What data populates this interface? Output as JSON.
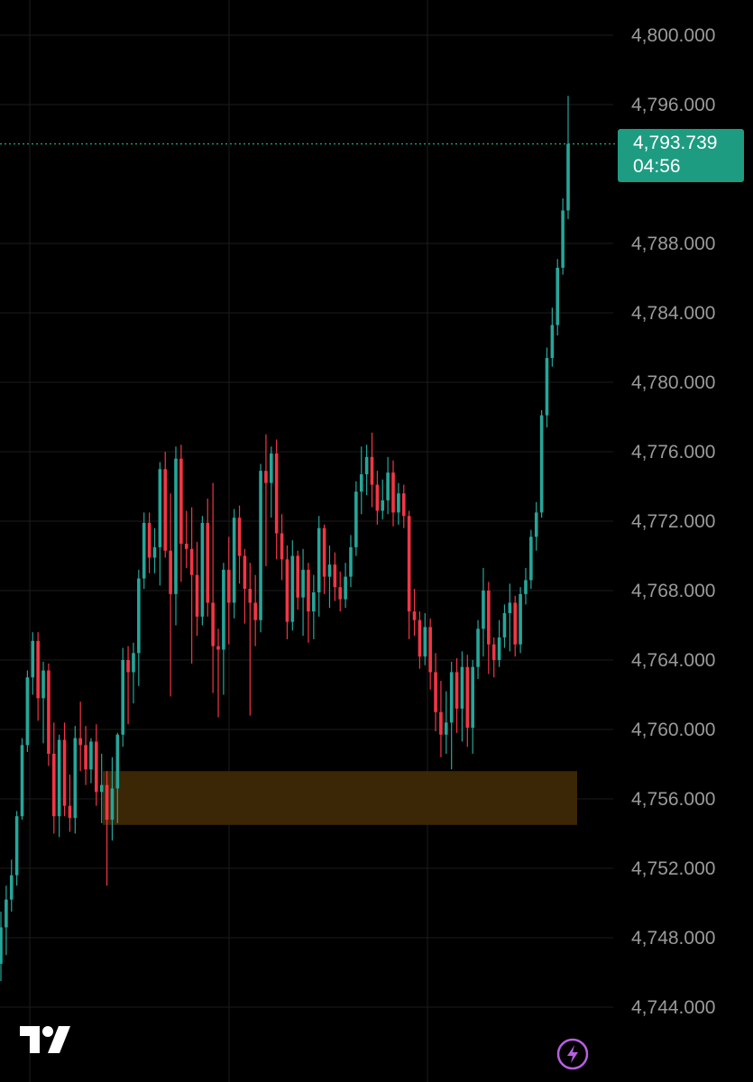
{
  "chart_data": {
    "type": "candlestick",
    "ylim": [
      4742,
      4801
    ],
    "y_ticks": [
      "4,800.000",
      "4,796.000",
      "4,788.000",
      "4,784.000",
      "4,780.000",
      "4,776.000",
      "4,772.000",
      "4,768.000",
      "4,764.000",
      "4,760.000",
      "4,756.000",
      "4,752.000",
      "4,748.000",
      "4,744.000"
    ],
    "y_tick_values": [
      4800,
      4796,
      4788,
      4784,
      4780,
      4776,
      4772,
      4768,
      4764,
      4760,
      4756,
      4752,
      4748,
      4744
    ],
    "grid": true,
    "colors": {
      "up": "#26a69a",
      "down": "#f23645",
      "zone": "#3b2605",
      "current_price_line": "#1d9c81"
    },
    "current_price": {
      "value": 4793.739,
      "label": "4,793.739",
      "countdown": "04:56"
    },
    "zone": {
      "low": 4754.5,
      "high": 4757.6
    },
    "candles": [
      [
        4746.5,
        4749.5,
        4745.5,
        4748.6
      ],
      [
        4748.6,
        4751.0,
        4747.0,
        4750.2
      ],
      [
        4750.2,
        4752.5,
        4749.5,
        4751.6
      ],
      [
        4751.6,
        4755.3,
        4751.0,
        4755.0
      ],
      [
        4755.0,
        4759.5,
        4754.8,
        4759.1
      ],
      [
        4759.1,
        4763.4,
        4758.7,
        4763.0
      ],
      [
        4763.0,
        4765.6,
        4762.0,
        4765.1
      ],
      [
        4765.1,
        4765.6,
        4760.5,
        4761.8
      ],
      [
        4761.8,
        4763.9,
        4759.2,
        4763.4
      ],
      [
        4763.4,
        4763.8,
        4757.9,
        4758.6
      ],
      [
        4758.6,
        4760.4,
        4754.0,
        4755.0
      ],
      [
        4755.0,
        4759.7,
        4753.8,
        4759.4
      ],
      [
        4759.4,
        4760.4,
        4755.0,
        4755.6
      ],
      [
        4755.6,
        4757.4,
        4754.1,
        4754.9
      ],
      [
        4754.9,
        4760.2,
        4754.0,
        4759.5
      ],
      [
        4759.5,
        4761.6,
        4757.6,
        4759.1
      ],
      [
        4759.1,
        4760.2,
        4756.8,
        4757.7
      ],
      [
        4757.7,
        4759.5,
        4756.9,
        4759.3
      ],
      [
        4759.3,
        4760.3,
        4755.6,
        4756.4
      ],
      [
        4756.4,
        4758.6,
        4754.6,
        4756.8
      ],
      [
        4756.8,
        4757.6,
        4751.0,
        4754.8
      ],
      [
        4754.8,
        4758.4,
        4753.6,
        4756.6
      ],
      [
        4756.6,
        4759.8,
        4754.6,
        4759.7
      ],
      [
        4759.7,
        4764.7,
        4759.0,
        4764.0
      ],
      [
        4764.0,
        4764.8,
        4760.3,
        4763.3
      ],
      [
        4763.3,
        4765.0,
        4761.5,
        4764.4
      ],
      [
        4764.4,
        4769.2,
        4762.5,
        4768.7
      ],
      [
        4768.7,
        4772.5,
        4768.1,
        4771.9
      ],
      [
        4771.9,
        4772.5,
        4769.0,
        4769.9
      ],
      [
        4769.9,
        4771.6,
        4769.0,
        4770.5
      ],
      [
        4770.5,
        4775.4,
        4768.3,
        4775.0
      ],
      [
        4775.0,
        4776.0,
        4769.9,
        4770.3
      ],
      [
        4770.3,
        4773.6,
        4761.9,
        4767.8
      ],
      [
        4767.8,
        4776.3,
        4766.0,
        4775.6
      ],
      [
        4775.6,
        4776.4,
        4768.5,
        4770.7
      ],
      [
        4770.7,
        4772.6,
        4769.3,
        4770.4
      ],
      [
        4770.4,
        4772.8,
        4763.8,
        4768.9
      ],
      [
        4768.9,
        4770.8,
        4765.4,
        4766.5
      ],
      [
        4766.5,
        4772.3,
        4766.0,
        4771.9
      ],
      [
        4771.9,
        4773.3,
        4766.5,
        4767.3
      ],
      [
        4767.3,
        4774.2,
        4762.1,
        4764.8
      ],
      [
        4764.8,
        4765.8,
        4760.7,
        4764.6
      ],
      [
        4764.6,
        4769.6,
        4762.0,
        4769.2
      ],
      [
        4769.2,
        4771.1,
        4764.9,
        4767.3
      ],
      [
        4767.3,
        4772.7,
        4766.4,
        4772.2
      ],
      [
        4772.2,
        4772.9,
        4768.4,
        4770.0
      ],
      [
        4770.0,
        4770.4,
        4766.1,
        4768.1
      ],
      [
        4768.1,
        4769.6,
        4760.8,
        4767.3
      ],
      [
        4767.3,
        4768.9,
        4764.8,
        4766.3
      ],
      [
        4766.3,
        4775.3,
        4765.6,
        4774.9
      ],
      [
        4774.9,
        4777.0,
        4769.4,
        4774.2
      ],
      [
        4774.2,
        4776.3,
        4772.2,
        4775.9
      ],
      [
        4775.9,
        4776.7,
        4769.8,
        4771.3
      ],
      [
        4771.3,
        4772.4,
        4768.6,
        4769.8
      ],
      [
        4769.8,
        4770.6,
        4765.2,
        4766.2
      ],
      [
        4766.2,
        4770.9,
        4765.7,
        4770.0
      ],
      [
        4770.0,
        4770.3,
        4766.9,
        4767.6
      ],
      [
        4767.6,
        4770.4,
        4765.4,
        4769.2
      ],
      [
        4769.2,
        4769.6,
        4765.0,
        4766.8
      ],
      [
        4766.8,
        4768.9,
        4765.2,
        4767.9
      ],
      [
        4767.9,
        4772.3,
        4766.5,
        4771.6
      ],
      [
        4771.6,
        4771.8,
        4767.8,
        4768.8
      ],
      [
        4768.8,
        4770.6,
        4767.0,
        4769.5
      ],
      [
        4769.5,
        4770.2,
        4767.4,
        4768.2
      ],
      [
        4768.2,
        4769.1,
        4766.8,
        4767.5
      ],
      [
        4767.5,
        4769.6,
        4767.0,
        4768.8
      ],
      [
        4768.8,
        4771.2,
        4768.2,
        4770.5
      ],
      [
        4770.5,
        4774.3,
        4770.0,
        4773.7
      ],
      [
        4773.7,
        4776.3,
        4772.4,
        4774.7
      ],
      [
        4774.7,
        4776.4,
        4773.5,
        4775.7
      ],
      [
        4775.7,
        4777.1,
        4772.8,
        4774.1
      ],
      [
        4774.1,
        4774.9,
        4771.8,
        4772.6
      ],
      [
        4772.6,
        4774.4,
        4772.1,
        4773.2
      ],
      [
        4773.2,
        4775.7,
        4772.4,
        4774.8
      ],
      [
        4774.8,
        4775.5,
        4771.7,
        4772.5
      ],
      [
        4772.5,
        4774.2,
        4771.8,
        4773.6
      ],
      [
        4773.6,
        4774.1,
        4771.6,
        4772.3
      ],
      [
        4772.3,
        4772.6,
        4765.2,
        4766.8
      ],
      [
        4766.8,
        4768.1,
        4765.4,
        4766.3
      ],
      [
        4766.3,
        4766.8,
        4763.5,
        4764.2
      ],
      [
        4764.2,
        4766.7,
        4763.7,
        4765.9
      ],
      [
        4765.9,
        4766.4,
        4762.3,
        4763.3
      ],
      [
        4763.3,
        4764.4,
        4759.9,
        4761.0
      ],
      [
        4761.0,
        4762.8,
        4758.4,
        4759.7
      ],
      [
        4759.7,
        4762.2,
        4758.6,
        4760.4
      ],
      [
        4760.4,
        4763.9,
        4757.7,
        4763.3
      ],
      [
        4763.3,
        4764.1,
        4759.8,
        4761.2
      ],
      [
        4761.2,
        4764.5,
        4759.3,
        4763.6
      ],
      [
        4763.6,
        4764.3,
        4759.0,
        4760.1
      ],
      [
        4760.1,
        4764.0,
        4758.6,
        4763.6
      ],
      [
        4763.6,
        4766.3,
        4762.9,
        4765.8
      ],
      [
        4765.8,
        4769.3,
        4764.2,
        4768.0
      ],
      [
        4768.0,
        4768.5,
        4763.2,
        4764.9
      ],
      [
        4764.9,
        4765.3,
        4763.0,
        4764.0
      ],
      [
        4764.0,
        4766.3,
        4763.6,
        4765.3
      ],
      [
        4765.3,
        4767.2,
        4764.7,
        4766.7
      ],
      [
        4766.7,
        4768.4,
        4764.5,
        4767.3
      ],
      [
        4767.3,
        4767.7,
        4764.2,
        4764.9
      ],
      [
        4764.9,
        4768.2,
        4764.4,
        4767.8
      ],
      [
        4767.8,
        4769.3,
        4767.2,
        4768.6
      ],
      [
        4768.6,
        4771.5,
        4768.1,
        4771.1
      ],
      [
        4771.1,
        4773.1,
        4770.3,
        4772.5
      ],
      [
        4772.5,
        4778.4,
        4772.2,
        4778.1
      ],
      [
        4778.1,
        4782.0,
        4777.4,
        4781.4
      ],
      [
        4781.4,
        4784.3,
        4780.9,
        4783.3
      ],
      [
        4783.3,
        4787.1,
        4782.7,
        4786.6
      ],
      [
        4786.6,
        4790.6,
        4786.2,
        4789.9
      ],
      [
        4789.9,
        4796.5,
        4789.4,
        4793.739
      ]
    ]
  }
}
